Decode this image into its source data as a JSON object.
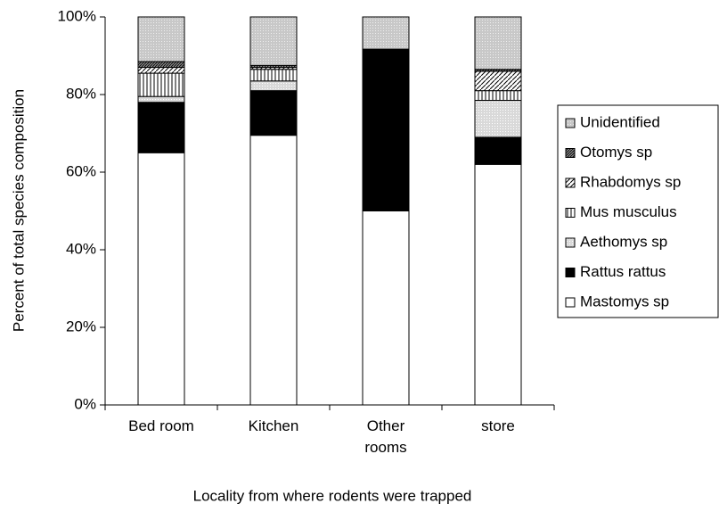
{
  "chart_data": {
    "type": "stacked_bar",
    "categories": [
      "Bed room",
      "Kitchen",
      "Other rooms",
      "store"
    ],
    "series": [
      {
        "name": "Mastomys sp",
        "color": "#ffffff",
        "values": [
          65,
          69.5,
          50,
          62
        ]
      },
      {
        "name": "Rattus rattus",
        "color": "#000000",
        "values": [
          13,
          11.5,
          41.7,
          7
        ]
      },
      {
        "name": "Aethomys sp",
        "color": "#d9d9d9",
        "values": [
          1.5,
          2.5,
          0,
          9.5
        ]
      },
      {
        "name": "Mus musculus",
        "color": "#ffffff",
        "values": [
          6,
          3,
          0,
          2.5
        ]
      },
      {
        "name": "Rhabdomys sp",
        "color": "#ffffff",
        "values": [
          1.5,
          0.5,
          0,
          5
        ]
      },
      {
        "name": "Otomys sp",
        "color": "#808080",
        "values": [
          1.5,
          0.5,
          0,
          0.5
        ]
      },
      {
        "name": "Unidentified",
        "color": "#c8c8c8",
        "values": [
          11.5,
          12.5,
          8.3,
          13.5
        ]
      }
    ],
    "ylim": [
      0,
      100
    ],
    "yticks": [
      {
        "value": 0,
        "label": "0%"
      },
      {
        "value": 20,
        "label": "20%"
      },
      {
        "value": 40,
        "label": "40%"
      },
      {
        "value": 60,
        "label": "60%"
      },
      {
        "value": 80,
        "label": "80%"
      },
      {
        "value": 100,
        "label": "100%"
      }
    ],
    "ylabel": "Percent of total species composition",
    "xlabel": "Locality from where rodents were trapped"
  }
}
